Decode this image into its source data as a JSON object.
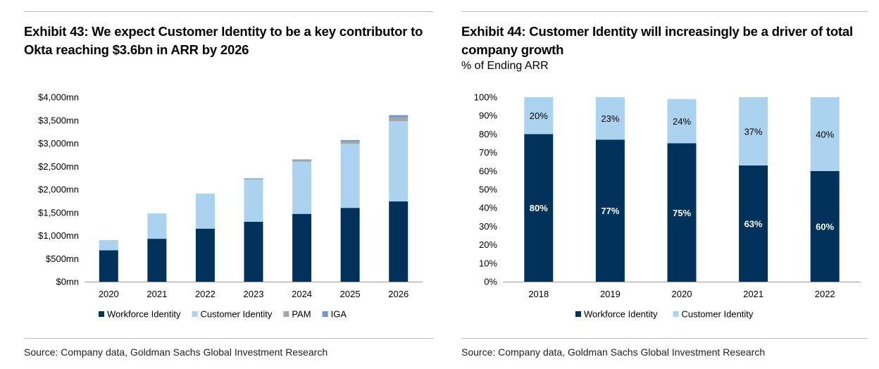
{
  "colors": {
    "workforce": "#01325c",
    "customer": "#abd2ee",
    "pam": "#a6a6a6",
    "iga": "#6e96c8",
    "axis": "#999999"
  },
  "left": {
    "title": "Exhibit 43: We expect Customer Identity to be a key contributor to Okta reaching $3.6bn in ARR by 2026",
    "source": "Source: Company data, Goldman Sachs Global Investment Research"
  },
  "right": {
    "title": "Exhibit 44: Customer Identity will increasingly be a driver of total company growth",
    "subtitle": "% of Ending ARR",
    "source": "Source: Company data, Goldman Sachs Global Investment Research"
  },
  "chart_data": [
    {
      "type": "bar",
      "stacked": true,
      "title": "Exhibit 43: We expect Customer Identity to be a key contributor to Okta reaching $3.6bn in ARR by 2026",
      "categories": [
        "2020",
        "2021",
        "2022",
        "2023",
        "2024",
        "2025",
        "2026"
      ],
      "series": [
        {
          "name": "Workforce Identity",
          "values": [
            680,
            930,
            1150,
            1300,
            1470,
            1600,
            1740
          ]
        },
        {
          "name": "Customer Identity",
          "values": [
            220,
            550,
            760,
            920,
            1130,
            1390,
            1740
          ]
        },
        {
          "name": "PAM",
          "values": [
            0,
            0,
            0,
            10,
            30,
            50,
            80
          ]
        },
        {
          "name": "IGA",
          "values": [
            0,
            0,
            0,
            10,
            20,
            30,
            50
          ]
        }
      ],
      "ylim": [
        0,
        4000
      ],
      "yticks": [
        0,
        500,
        1000,
        1500,
        2000,
        2500,
        3000,
        3500,
        4000
      ],
      "ytick_labels": [
        "$0mn",
        "$500mn",
        "$1,000mn",
        "$1,500mn",
        "$2,000mn",
        "$2,500mn",
        "$3,000mn",
        "$3,500mn",
        "$4,000mn"
      ],
      "xlabel": "",
      "ylabel": "",
      "grid": false,
      "legend": "bottom"
    },
    {
      "type": "bar",
      "stacked": true,
      "title": "Exhibit 44: Customer Identity will increasingly be a driver of total company growth",
      "subtitle": "% of Ending ARR",
      "categories": [
        "2018",
        "2019",
        "2020",
        "2021",
        "2022"
      ],
      "series": [
        {
          "name": "Workforce Identity",
          "values": [
            80,
            77,
            75,
            63,
            60
          ],
          "labels": [
            "80%",
            "77%",
            "75%",
            "63%",
            "60%"
          ]
        },
        {
          "name": "Customer Identity",
          "values": [
            20,
            23,
            24,
            37,
            40
          ],
          "labels": [
            "20%",
            "23%",
            "24%",
            "37%",
            "40%"
          ]
        }
      ],
      "ylim": [
        0,
        100
      ],
      "yticks": [
        0,
        10,
        20,
        30,
        40,
        50,
        60,
        70,
        80,
        90,
        100
      ],
      "ytick_labels": [
        "0%",
        "10%",
        "20%",
        "30%",
        "40%",
        "50%",
        "60%",
        "70%",
        "80%",
        "90%",
        "100%"
      ],
      "xlabel": "",
      "ylabel": "",
      "grid": false,
      "legend": "bottom"
    }
  ]
}
